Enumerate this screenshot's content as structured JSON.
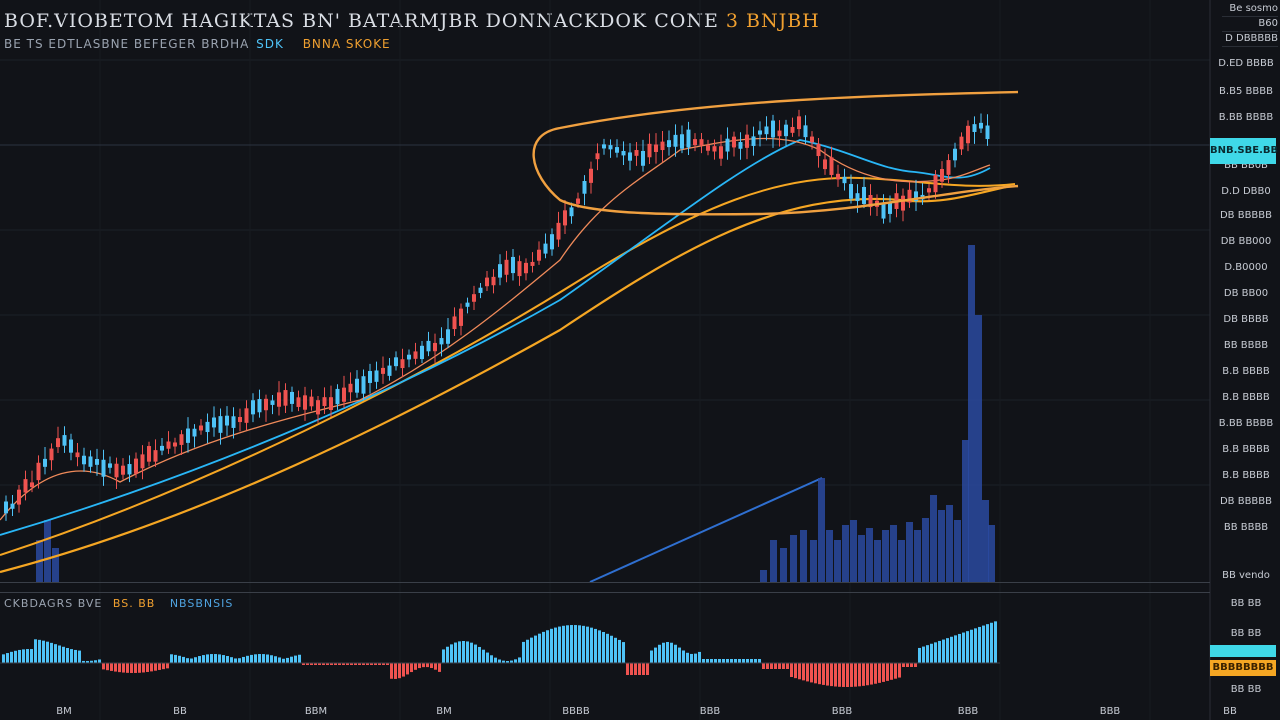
{
  "header": {
    "title": "BOF.VIOBETOM HAGIKTAS BN' BATARMJBR DONNACKDOK CONE",
    "title_accent": "3 BNJBH",
    "subtitle_a": "BE TS EDTLASBNE BEFEGER BRDHA",
    "subtitle_b": "SDK",
    "subtitle_c": "BNNA SKOKE"
  },
  "corner": {
    "line1": "Be sosmo",
    "line2": "B60",
    "line3": "D DBBBBB"
  },
  "price_axis": [
    "D.ED BBBB",
    "B.B5 BBBB",
    "B.BB BBBB",
    "BB BB0B",
    "D.D DBB0",
    "DB BBBBB",
    "DB BB000",
    "D.B0000",
    "DB BB00",
    "DB BBBB",
    "BB BBBB",
    "B.B BBBB",
    "B.B BBBB",
    "B.BB BBBB",
    "B.B BBBB",
    "B.B BBBB",
    "DB BBBBB",
    "BB BBBB"
  ],
  "price_tags": {
    "cyan": "BNB.SBE.BB",
    "orange": "BBBBBBBB"
  },
  "volume_label": "BB vendo",
  "indicator": {
    "label_a": "CKBDAGRS BVE",
    "label_b": "BS. BB",
    "label_c": "NBSBNSIS",
    "axis": [
      "BB BB",
      "BB BB",
      "BB BB"
    ]
  },
  "time_axis": [
    "BM",
    "BB",
    "BBM",
    "BM",
    "BBBB",
    "BBB",
    "BBB",
    "BBB",
    "BBB",
    "BB"
  ],
  "colors": {
    "background": "#111318",
    "up": "#4fc3f7",
    "down": "#ef5350",
    "ma_fast": "#ef8a5a",
    "ma_mid": "#29b6f6",
    "ma_slow": "#f5a623",
    "annotation": "#f0a040",
    "volume": "#2a4aa0"
  }
}
